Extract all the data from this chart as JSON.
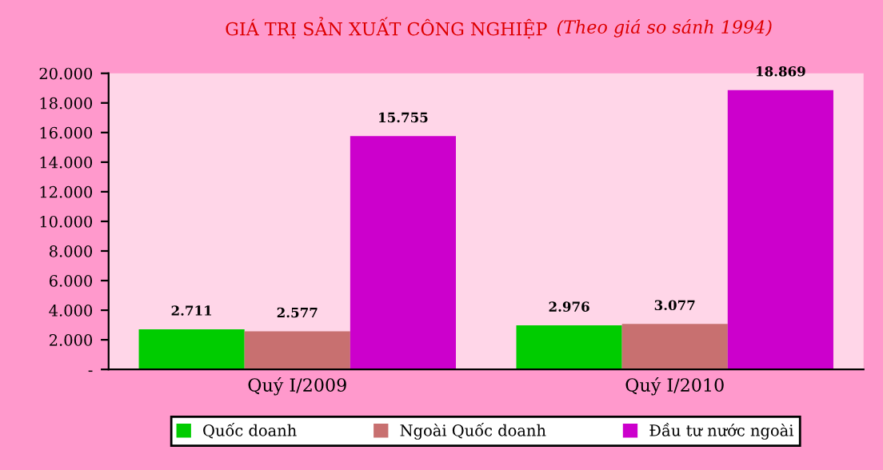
{
  "chart_data": {
    "type": "bar",
    "title": "GIÁ TRỊ SẢN XUẤT CÔNG NGHIỆP",
    "subtitle": "(Theo giá so sánh 1994)",
    "categories": [
      "Quý I/2009",
      "Quý I/2010"
    ],
    "series": [
      {
        "name": "Quốc doanh",
        "color": "#00cc00",
        "values": [
          2711,
          2976
        ],
        "value_labels": [
          "2.711",
          "2.976"
        ]
      },
      {
        "name": "Ngoài Quốc doanh",
        "color": "#c87070",
        "values": [
          2577,
          3077
        ],
        "value_labels": [
          "2.577",
          "3.077"
        ]
      },
      {
        "name": "Đầu tư nước ngoài",
        "color": "#cc00cc",
        "values": [
          15755,
          18869
        ],
        "value_labels": [
          "15.755",
          "18.869"
        ]
      }
    ],
    "ylim": [
      0,
      20000
    ],
    "yticks": [
      {
        "value": 0,
        "label": "-"
      },
      {
        "value": 2000,
        "label": "2.000"
      },
      {
        "value": 4000,
        "label": "4.000"
      },
      {
        "value": 6000,
        "label": "6.000"
      },
      {
        "value": 8000,
        "label": "8.000"
      },
      {
        "value": 10000,
        "label": "10.000"
      },
      {
        "value": 12000,
        "label": "12.000"
      },
      {
        "value": 14000,
        "label": "14.000"
      },
      {
        "value": 16000,
        "label": "16.000"
      },
      {
        "value": 18000,
        "label": "18.000"
      },
      {
        "value": 20000,
        "label": "20.000"
      }
    ],
    "grid": false,
    "legend": "bottom"
  }
}
